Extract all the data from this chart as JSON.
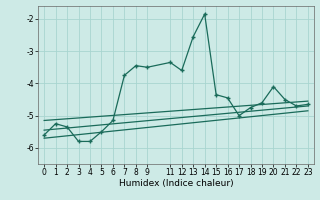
{
  "xlabel": "Humidex (Indice chaleur)",
  "bg_color": "#cdeae6",
  "grid_color": "#a8d5d0",
  "line_color": "#1a6b5a",
  "xlim": [
    -0.5,
    23.5
  ],
  "ylim": [
    -6.5,
    -1.6
  ],
  "yticks": [
    -6,
    -5,
    -4,
    -3,
    -2
  ],
  "xticks": [
    0,
    1,
    2,
    3,
    4,
    5,
    6,
    7,
    8,
    9,
    11,
    12,
    13,
    14,
    15,
    16,
    17,
    18,
    19,
    20,
    21,
    22,
    23
  ],
  "main_x": [
    0,
    1,
    2,
    3,
    4,
    5,
    6,
    7,
    8,
    9,
    11,
    12,
    13,
    14,
    15,
    16,
    17,
    18,
    19,
    20,
    21,
    22,
    23
  ],
  "main_y": [
    -5.6,
    -5.25,
    -5.35,
    -5.8,
    -5.8,
    -5.5,
    -5.15,
    -3.75,
    -3.45,
    -3.5,
    -3.35,
    -3.6,
    -2.55,
    -1.85,
    -4.35,
    -4.45,
    -5.0,
    -4.75,
    -4.6,
    -4.1,
    -4.5,
    -4.7,
    -4.65
  ],
  "line1_x": [
    0,
    23
  ],
  "line1_y": [
    -5.45,
    -4.7
  ],
  "line2_x": [
    0,
    23
  ],
  "line2_y": [
    -5.15,
    -4.55
  ],
  "line3_x": [
    0,
    23
  ],
  "line3_y": [
    -5.7,
    -4.85
  ],
  "tick_fontsize": 5.5,
  "xlabel_fontsize": 6.5
}
